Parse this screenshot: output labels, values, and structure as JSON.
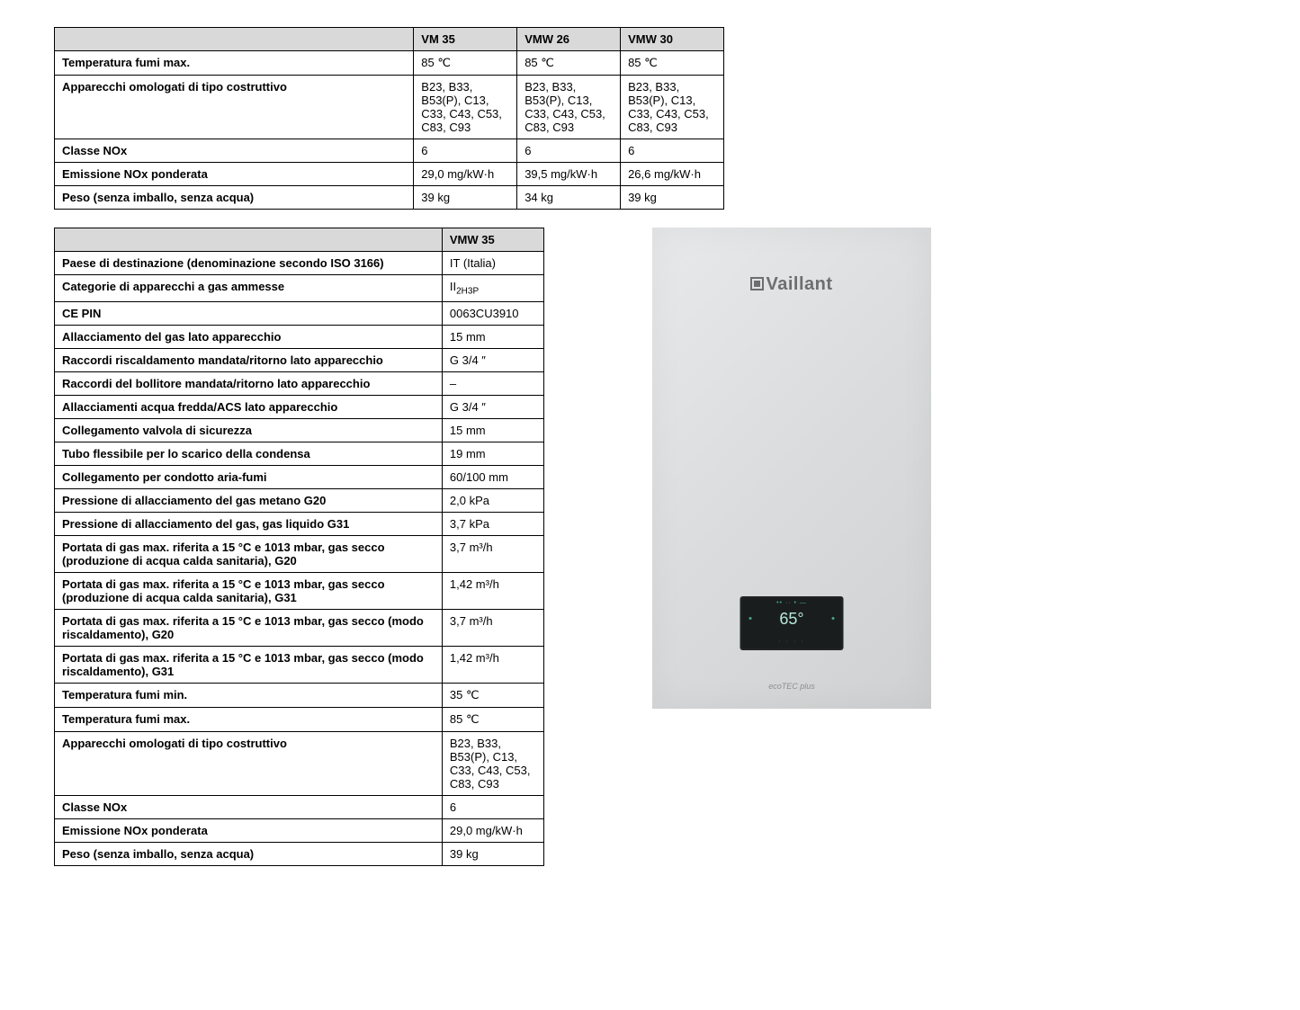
{
  "table1": {
    "headers": [
      "",
      "VM 35",
      "VMW 26",
      "VMW 30"
    ],
    "rows": [
      {
        "label": "Temperatura fumi max.",
        "v1": "85 ℃",
        "v2": "85 ℃",
        "v3": "85 ℃"
      },
      {
        "label": "Apparecchi omologati di tipo costruttivo",
        "v1": "B23, B33, B53(P), C13, C33, C43, C53, C83, C93",
        "v2": "B23, B33, B53(P), C13, C33, C43, C53, C83, C93",
        "v3": "B23, B33, B53(P), C13, C33, C43, C53, C83, C93"
      },
      {
        "label": "Classe NOx",
        "v1": "6",
        "v2": "6",
        "v3": "6"
      },
      {
        "label": "Emissione NOx ponderata",
        "v1": "29,0 mg/kW·h",
        "v2": "39,5 mg/kW·h",
        "v3": "26,6 mg/kW·h"
      },
      {
        "label": "Peso (senza imballo, senza acqua)",
        "v1": "39 kg",
        "v2": "34 kg",
        "v3": "39 kg"
      }
    ]
  },
  "table2": {
    "headers": [
      "",
      "VMW 35"
    ],
    "rows": [
      {
        "label": "Paese di destinazione (denominazione secondo ISO 3166)",
        "v": "IT (Italia)"
      },
      {
        "label": "Categorie di apparecchi a gas ammesse",
        "v": "II₂H₃P",
        "html": "II<sub>2H3P</sub>"
      },
      {
        "label": "CE PIN",
        "v": "0063CU3910"
      },
      {
        "label": "Allacciamento del gas lato apparecchio",
        "v": "15 mm"
      },
      {
        "label": "Raccordi riscaldamento mandata/ritorno lato apparecchio",
        "v": "G 3/4 ″"
      },
      {
        "label": "Raccordi del bollitore mandata/ritorno lato apparecchio",
        "v": "–"
      },
      {
        "label": "Allacciamenti acqua fredda/ACS lato apparecchio",
        "v": "G 3/4 ″"
      },
      {
        "label": "Collegamento valvola di sicurezza",
        "v": "15 mm"
      },
      {
        "label": "Tubo flessibile per lo scarico della condensa",
        "v": "19 mm"
      },
      {
        "label": "Collegamento per condotto aria-fumi",
        "v": "60/100 mm"
      },
      {
        "label": "Pressione di allacciamento del gas metano G20",
        "v": "2,0 kPa"
      },
      {
        "label": "Pressione di allacciamento del gas, gas liquido G31",
        "v": "3,7 kPa"
      },
      {
        "label": "Portata di gas max. riferita a 15 °C e 1013 mbar, gas secco (produzione di acqua calda sanitaria), G20",
        "v": "3,7 m³/h"
      },
      {
        "label": "Portata di gas max. riferita a 15 °C e 1013 mbar, gas secco (produzione di acqua calda sanitaria), G31",
        "v": "1,42 m³/h"
      },
      {
        "label": "Portata di gas max. riferita a 15 °C e 1013 mbar, gas secco (modo riscaldamento), G20",
        "v": "3,7 m³/h"
      },
      {
        "label": "Portata di gas max. riferita a 15 °C e 1013 mbar, gas secco (modo riscaldamento), G31",
        "v": "1,42 m³/h"
      },
      {
        "label": "Temperatura fumi min.",
        "v": "35 ℃"
      },
      {
        "label": "Temperatura fumi max.",
        "v": "85 ℃"
      },
      {
        "label": "Apparecchi omologati di tipo costruttivo",
        "v": "B23, B33, B53(P), C13, C33, C43, C53, C83, C93"
      },
      {
        "label": "Classe NOx",
        "v": "6"
      },
      {
        "label": "Emissione NOx ponderata",
        "v": "29,0 mg/kW·h"
      },
      {
        "label": "Peso (senza imballo, senza acqua)",
        "v": "39 kg"
      }
    ]
  },
  "product": {
    "brand": "Vaillant",
    "display_readout": "65°",
    "model_label": "ecoTEC plus"
  },
  "colors": {
    "table_header_bg": "#d9d9d9",
    "border": "#000000",
    "product_bg_light": "#e8e9ea",
    "product_bg_dark": "#cfd1d2",
    "brand_text": "#6d6e70",
    "panel_bg": "#1a1d1e",
    "panel_readout": "#b8e8db"
  }
}
